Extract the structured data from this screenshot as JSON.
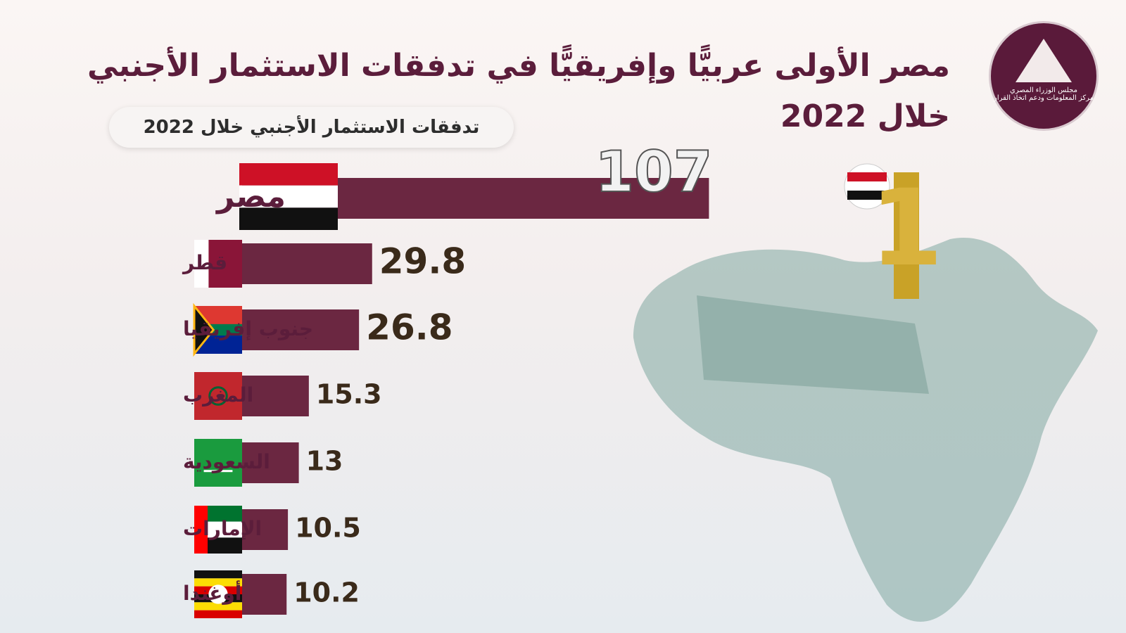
{
  "logo": {
    "line1": "مجلس الوزراء المصري",
    "line2": "مركز المعلومات ودعم اتخاذ القرار"
  },
  "chart_data": {
    "type": "bar",
    "title": "مصر الأولى عربيًّا وإفريقيًّا في تدفقات الاستثمار الأجنبي خلال 2022",
    "subtitle": "تدفقات الاستثمار الأجنبي خلال 2022",
    "annotation": "1",
    "categories": [
      "مصر",
      "قطر",
      "جنوب إفريقيا",
      "المغرب",
      "السعودية",
      "الإمارات",
      "أوغندا"
    ],
    "values": [
      107,
      29.8,
      26.8,
      15.3,
      13,
      10.5,
      10.2
    ],
    "color": "#6b2741"
  }
}
